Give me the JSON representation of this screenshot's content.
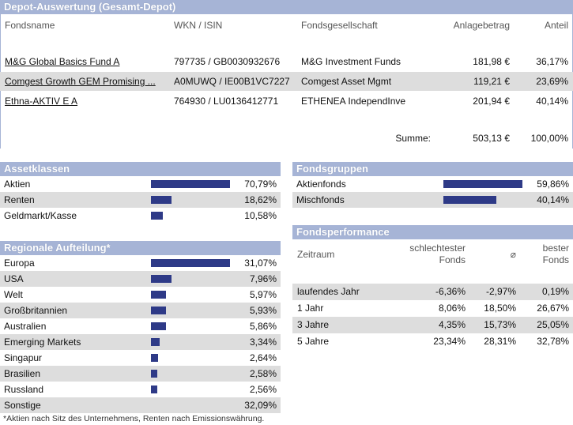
{
  "depot": {
    "title": "Depot-Auswertung (Gesamt-Depot)",
    "columns": {
      "name": "Fondsname",
      "wkn": "WKN / ISIN",
      "company": "Fondsgesellschaft",
      "amount": "Anlagebetrag",
      "share": "Anteil"
    },
    "rows": [
      {
        "name": "M&G Global Basics Fund A",
        "wkn": "797735 / GB0030932676",
        "company": "M&G Investment Funds",
        "amount": "181,98 €",
        "share": "36,17%"
      },
      {
        "name": "Comgest Growth GEM Promising ...",
        "wkn": "A0MUWQ / IE00B1VC7227",
        "company": "Comgest Asset Mgmt",
        "amount": "119,21 €",
        "share": "23,69%"
      },
      {
        "name": "Ethna-AKTIV E A",
        "wkn": "764930 / LU0136412771",
        "company": "ETHENEA IndependInve",
        "amount": "201,94 €",
        "share": "40,14%"
      }
    ],
    "sum_label": "Summe:",
    "sum_amount": "503,13 €",
    "sum_share": "100,00%"
  },
  "assetklassen": {
    "title": "Assetklassen",
    "items": [
      {
        "label": "Aktien",
        "value": "70,79%",
        "fraction": 1.0
      },
      {
        "label": "Renten",
        "value": "18,62%",
        "fraction": 0.263
      },
      {
        "label": "Geldmarkt/Kasse",
        "value": "10,58%",
        "fraction": 0.15
      }
    ]
  },
  "regionen": {
    "title": "Regionale Aufteilung*",
    "items": [
      {
        "label": "Europa",
        "value": "31,07%",
        "fraction": 1.0
      },
      {
        "label": "USA",
        "value": "7,96%",
        "fraction": 0.256
      },
      {
        "label": "Welt",
        "value": "5,97%",
        "fraction": 0.192
      },
      {
        "label": "Großbritannien",
        "value": "5,93%",
        "fraction": 0.191
      },
      {
        "label": "Australien",
        "value": "5,86%",
        "fraction": 0.189
      },
      {
        "label": "Emerging Markets",
        "value": "3,34%",
        "fraction": 0.108
      },
      {
        "label": "Singapur",
        "value": "2,64%",
        "fraction": 0.085
      },
      {
        "label": "Brasilien",
        "value": "2,58%",
        "fraction": 0.083
      },
      {
        "label": "Russland",
        "value": "2,56%",
        "fraction": 0.082
      },
      {
        "label": "Sonstige",
        "value": "32,09%",
        "fraction": 0
      }
    ],
    "footnote": "*Aktien nach Sitz des Unternehmens, Renten nach Emissionswährung."
  },
  "fondsgruppen": {
    "title": "Fondsgruppen",
    "items": [
      {
        "label": "Aktienfonds",
        "value": "59,86%",
        "fraction": 1.0
      },
      {
        "label": "Mischfonds",
        "value": "40,14%",
        "fraction": 0.67
      }
    ]
  },
  "performance": {
    "title": "Fondsperformance",
    "col_period": "Zeitraum",
    "col_worst_1": "schlechtester",
    "col_worst_2": "Fonds",
    "col_avg": "⌀",
    "col_best_1": "bester",
    "col_best_2": "Fonds",
    "rows": [
      {
        "period": "laufendes Jahr",
        "worst": "-6,36%",
        "avg": "-2,97%",
        "best": "0,19%"
      },
      {
        "period": "1 Jahr",
        "worst": "8,06%",
        "avg": "18,50%",
        "best": "26,67%"
      },
      {
        "period": "3 Jahre",
        "worst": "4,35%",
        "avg": "15,73%",
        "best": "25,05%"
      },
      {
        "period": "5 Jahre",
        "worst": "23,34%",
        "avg": "28,31%",
        "best": "32,78%"
      }
    ]
  }
}
